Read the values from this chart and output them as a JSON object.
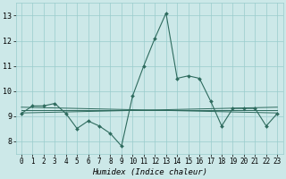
{
  "title": "",
  "xlabel": "Humidex (Indice chaleur)",
  "x": [
    0,
    1,
    2,
    3,
    4,
    5,
    6,
    7,
    8,
    9,
    10,
    11,
    12,
    13,
    14,
    15,
    16,
    17,
    18,
    19,
    20,
    21,
    22,
    23
  ],
  "y_main": [
    9.1,
    9.4,
    9.4,
    9.5,
    9.1,
    8.5,
    8.8,
    8.6,
    8.3,
    7.8,
    9.8,
    11.0,
    12.1,
    13.1,
    10.5,
    10.6,
    10.5,
    9.6,
    8.6,
    9.3,
    9.3,
    9.3,
    8.6,
    9.1
  ],
  "y_line1": [
    9.12,
    9.13,
    9.14,
    9.15,
    9.16,
    9.17,
    9.18,
    9.19,
    9.2,
    9.21,
    9.22,
    9.23,
    9.24,
    9.25,
    9.26,
    9.27,
    9.28,
    9.29,
    9.3,
    9.31,
    9.32,
    9.33,
    9.34,
    9.35
  ],
  "y_line2": [
    9.22,
    9.22,
    9.22,
    9.22,
    9.22,
    9.22,
    9.22,
    9.22,
    9.22,
    9.22,
    9.22,
    9.22,
    9.22,
    9.22,
    9.22,
    9.22,
    9.22,
    9.22,
    9.22,
    9.22,
    9.22,
    9.22,
    9.22,
    9.22
  ],
  "y_line3": [
    9.35,
    9.34,
    9.33,
    9.32,
    9.31,
    9.3,
    9.29,
    9.28,
    9.27,
    9.26,
    9.25,
    9.24,
    9.23,
    9.22,
    9.21,
    9.2,
    9.19,
    9.18,
    9.17,
    9.16,
    9.15,
    9.14,
    9.13,
    9.12
  ],
  "line_color": "#2e6b5e",
  "bg_color": "#cce8e8",
  "grid_color": "#99cccc",
  "ylim": [
    7.5,
    13.5
  ],
  "xlim": [
    -0.5,
    23.5
  ],
  "yticks": [
    8,
    9,
    10,
    11,
    12,
    13
  ],
  "xticks": [
    0,
    1,
    2,
    3,
    4,
    5,
    6,
    7,
    8,
    9,
    10,
    11,
    12,
    13,
    14,
    15,
    16,
    17,
    18,
    19,
    20,
    21,
    22,
    23
  ],
  "xlabel_fontsize": 6.5,
  "tick_fontsize": 5.5
}
